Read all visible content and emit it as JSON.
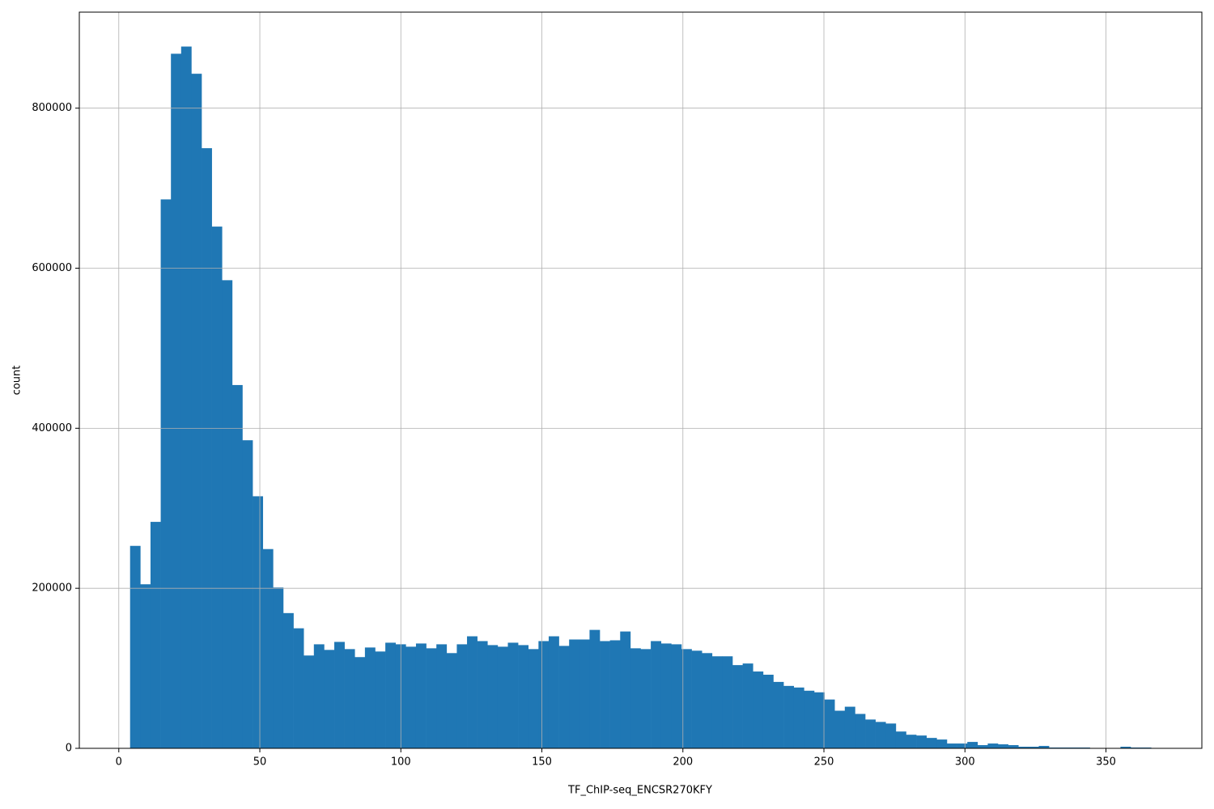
{
  "chart_data": {
    "type": "histogram",
    "x_label": "TF_ChIP-seq_ENCSR270KFY",
    "y_label": "count",
    "color": "#1f77b4",
    "grid": true,
    "bins": [
      4,
      7.62,
      11.24,
      14.86,
      18.48,
      22.1,
      25.72,
      29.34,
      32.96,
      36.58,
      40.2,
      43.82,
      47.44,
      51.06,
      54.68,
      58.3,
      61.92,
      65.54,
      69.16,
      72.78,
      76.4,
      80.02,
      83.64,
      87.26,
      90.88,
      94.5,
      98.12,
      101.74,
      105.36,
      108.98,
      112.6,
      116.22,
      119.84,
      123.46,
      127.08,
      130.7,
      134.32,
      137.94,
      141.56,
      145.18,
      148.8,
      152.42,
      156.04,
      159.66,
      163.28,
      166.9,
      170.52,
      174.14,
      177.76,
      181.38,
      185,
      188.62,
      192.24,
      195.86,
      199.48,
      203.1,
      206.72,
      210.34,
      213.96,
      217.58,
      221.2,
      224.82,
      228.44,
      232.06,
      235.68,
      239.3,
      242.92,
      246.54,
      250.16,
      253.78,
      257.4,
      261.02,
      264.64,
      268.26,
      271.88,
      275.5,
      279.12,
      282.74,
      286.36,
      289.98,
      293.6,
      297.22,
      300.84,
      304.46,
      308.08,
      311.7,
      315.32,
      318.94,
      322.56,
      326.18,
      329.8,
      333.42,
      337.04,
      340.66,
      344.28,
      347.9,
      351.52,
      355.14,
      358.76,
      362.38,
      366
    ],
    "values": [
      253000,
      205000,
      283000,
      686000,
      868000,
      877000,
      843000,
      750000,
      652000,
      585000,
      454000,
      385000,
      315000,
      249000,
      201000,
      169000,
      150000,
      116000,
      130000,
      123000,
      133000,
      124000,
      114000,
      126000,
      121000,
      132000,
      130000,
      127000,
      131000,
      125000,
      130000,
      119000,
      130000,
      140000,
      134000,
      129000,
      127000,
      132000,
      129000,
      124000,
      134000,
      140000,
      128000,
      136000,
      136000,
      148000,
      134000,
      135000,
      146000,
      125000,
      124000,
      134000,
      131000,
      130000,
      124000,
      122000,
      119000,
      115000,
      115000,
      104000,
      106000,
      96000,
      92000,
      83000,
      78000,
      76000,
      72000,
      70000,
      61000,
      47000,
      52000,
      43000,
      36000,
      33000,
      31000,
      21000,
      17000,
      16000,
      13000,
      11000,
      6000,
      6000,
      8000,
      4000,
      6000,
      5000,
      4000,
      2000,
      2000,
      3000,
      1000,
      1000,
      1000,
      1000,
      500,
      0,
      0,
      2000,
      1000,
      1000
    ],
    "xlim": [
      -14,
      384
    ],
    "ylim": [
      0,
      920000
    ],
    "xticks": [
      0,
      50,
      100,
      150,
      200,
      250,
      300,
      350
    ],
    "yticks": [
      0,
      200000,
      400000,
      600000,
      800000
    ]
  }
}
